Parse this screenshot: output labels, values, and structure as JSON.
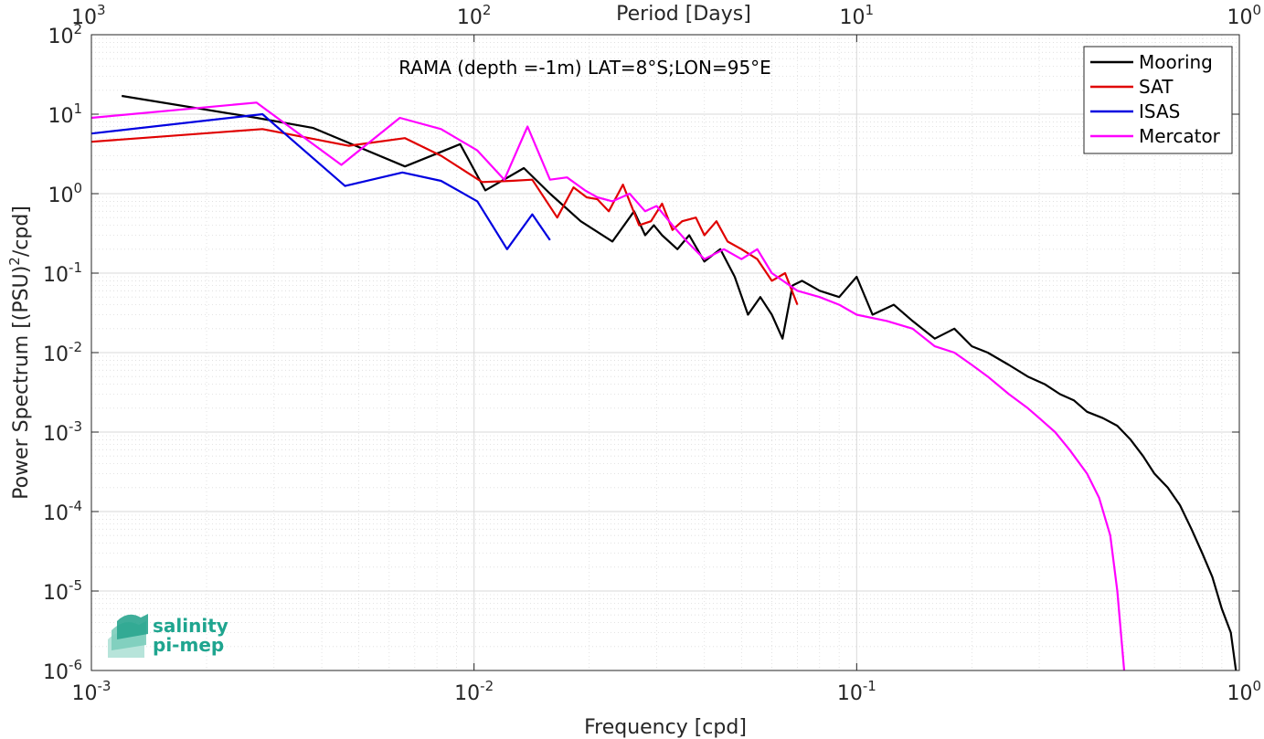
{
  "chart_data": {
    "type": "line",
    "title": "RAMA (depth =-1m) LAT=8°S;LON=95°E",
    "xlabel": "Frequency [cpd]",
    "ylabel_parts": [
      "Power Spectrum [(PSU)",
      "2",
      "/cpd]"
    ],
    "top_xlabel": "Period [Days]",
    "x_scale": "log",
    "y_scale": "log",
    "xlim": [
      0.001,
      1
    ],
    "ylim": [
      1e-06,
      100
    ],
    "grid": true,
    "legend_position": "top-right",
    "x_ticks": [
      {
        "value": 0.001,
        "base": "10",
        "exp": "-3"
      },
      {
        "value": 0.01,
        "base": "10",
        "exp": "-2"
      },
      {
        "value": 0.1,
        "base": "10",
        "exp": "-1"
      },
      {
        "value": 1,
        "base": "10",
        "exp": "0"
      }
    ],
    "y_ticks": [
      {
        "value": 1e-06,
        "base": "10",
        "exp": "-6"
      },
      {
        "value": 1e-05,
        "base": "10",
        "exp": "-5"
      },
      {
        "value": 0.0001,
        "base": "10",
        "exp": "-4"
      },
      {
        "value": 0.001,
        "base": "10",
        "exp": "-3"
      },
      {
        "value": 0.01,
        "base": "10",
        "exp": "-2"
      },
      {
        "value": 0.1,
        "base": "10",
        "exp": "-1"
      },
      {
        "value": 1,
        "base": "10",
        "exp": "0"
      },
      {
        "value": 10,
        "base": "10",
        "exp": "1"
      },
      {
        "value": 100,
        "base": "10",
        "exp": "2"
      }
    ],
    "top_ticks": [
      {
        "at_frequency": 0.001,
        "base": "10",
        "exp": "3"
      },
      {
        "at_frequency": 0.01,
        "base": "10",
        "exp": "2"
      },
      {
        "at_frequency": 0.1,
        "base": "10",
        "exp": "1"
      },
      {
        "at_frequency": 1,
        "base": "10",
        "exp": "0"
      }
    ],
    "series": [
      {
        "name": "Mooring",
        "color": "#000000",
        "x": [
          0.0012,
          0.0027,
          0.0038,
          0.0066,
          0.0092,
          0.0107,
          0.0135,
          0.0158,
          0.019,
          0.023,
          0.0262,
          0.028,
          0.0295,
          0.031,
          0.034,
          0.0365,
          0.04,
          0.044,
          0.048,
          0.052,
          0.056,
          0.06,
          0.064,
          0.068,
          0.072,
          0.08,
          0.09,
          0.1,
          0.11,
          0.125,
          0.14,
          0.16,
          0.18,
          0.2,
          0.22,
          0.25,
          0.28,
          0.31,
          0.34,
          0.37,
          0.4,
          0.44,
          0.48,
          0.52,
          0.56,
          0.6,
          0.65,
          0.7,
          0.75,
          0.8,
          0.85,
          0.9,
          0.95,
          0.98
        ],
        "y": [
          17,
          9,
          6.7,
          2.2,
          4.2,
          1.1,
          2.1,
          1.0,
          0.45,
          0.25,
          0.6,
          0.3,
          0.4,
          0.3,
          0.2,
          0.3,
          0.14,
          0.2,
          0.09,
          0.03,
          0.05,
          0.03,
          0.015,
          0.07,
          0.08,
          0.06,
          0.05,
          0.09,
          0.03,
          0.04,
          0.025,
          0.015,
          0.02,
          0.012,
          0.01,
          0.007,
          0.005,
          0.004,
          0.003,
          0.0025,
          0.0018,
          0.0015,
          0.0012,
          0.0008,
          0.0005,
          0.0003,
          0.0002,
          0.00012,
          6e-05,
          3e-05,
          1.5e-05,
          6e-06,
          3e-06,
          1e-06
        ]
      },
      {
        "name": "SAT",
        "color": "#e00000",
        "x": [
          0.001,
          0.0028,
          0.0047,
          0.0066,
          0.0082,
          0.0105,
          0.0125,
          0.0142,
          0.0165,
          0.0182,
          0.0197,
          0.021,
          0.0225,
          0.0245,
          0.027,
          0.029,
          0.031,
          0.033,
          0.035,
          0.038,
          0.04,
          0.043,
          0.046,
          0.05,
          0.055,
          0.06,
          0.065,
          0.07
        ],
        "y": [
          4.5,
          6.5,
          4.0,
          5.0,
          3.0,
          1.4,
          1.45,
          1.5,
          0.5,
          1.2,
          0.9,
          0.85,
          0.6,
          1.3,
          0.4,
          0.45,
          0.75,
          0.35,
          0.45,
          0.5,
          0.3,
          0.45,
          0.25,
          0.2,
          0.15,
          0.08,
          0.1,
          0.04
        ]
      },
      {
        "name": "ISAS",
        "color": "#0000e0",
        "x": [
          0.001,
          0.0028,
          0.0046,
          0.0065,
          0.0082,
          0.0102,
          0.0122,
          0.0142,
          0.0158
        ],
        "y": [
          5.7,
          10,
          1.25,
          1.85,
          1.45,
          0.8,
          0.2,
          0.55,
          0.26
        ]
      },
      {
        "name": "Mercator",
        "color": "#ff00ff",
        "x": [
          0.001,
          0.0027,
          0.0045,
          0.0064,
          0.0082,
          0.0102,
          0.012,
          0.0138,
          0.0158,
          0.0175,
          0.0195,
          0.021,
          0.023,
          0.0255,
          0.028,
          0.03,
          0.033,
          0.036,
          0.04,
          0.045,
          0.05,
          0.055,
          0.06,
          0.07,
          0.08,
          0.09,
          0.1,
          0.12,
          0.14,
          0.16,
          0.18,
          0.2,
          0.22,
          0.25,
          0.28,
          0.3,
          0.33,
          0.36,
          0.4,
          0.43,
          0.46,
          0.48,
          0.5
        ],
        "y": [
          9,
          14,
          2.3,
          9,
          6.5,
          3.5,
          1.5,
          7,
          1.5,
          1.6,
          1.1,
          0.9,
          0.8,
          1.0,
          0.6,
          0.7,
          0.4,
          0.25,
          0.15,
          0.2,
          0.15,
          0.2,
          0.1,
          0.06,
          0.05,
          0.04,
          0.03,
          0.025,
          0.02,
          0.012,
          0.01,
          0.007,
          0.005,
          0.003,
          0.002,
          0.0015,
          0.001,
          0.0006,
          0.0003,
          0.00015,
          5e-05,
          1e-05,
          1e-06
        ]
      }
    ]
  },
  "logo": {
    "line1": "salinity",
    "line2": "pi-mep"
  }
}
